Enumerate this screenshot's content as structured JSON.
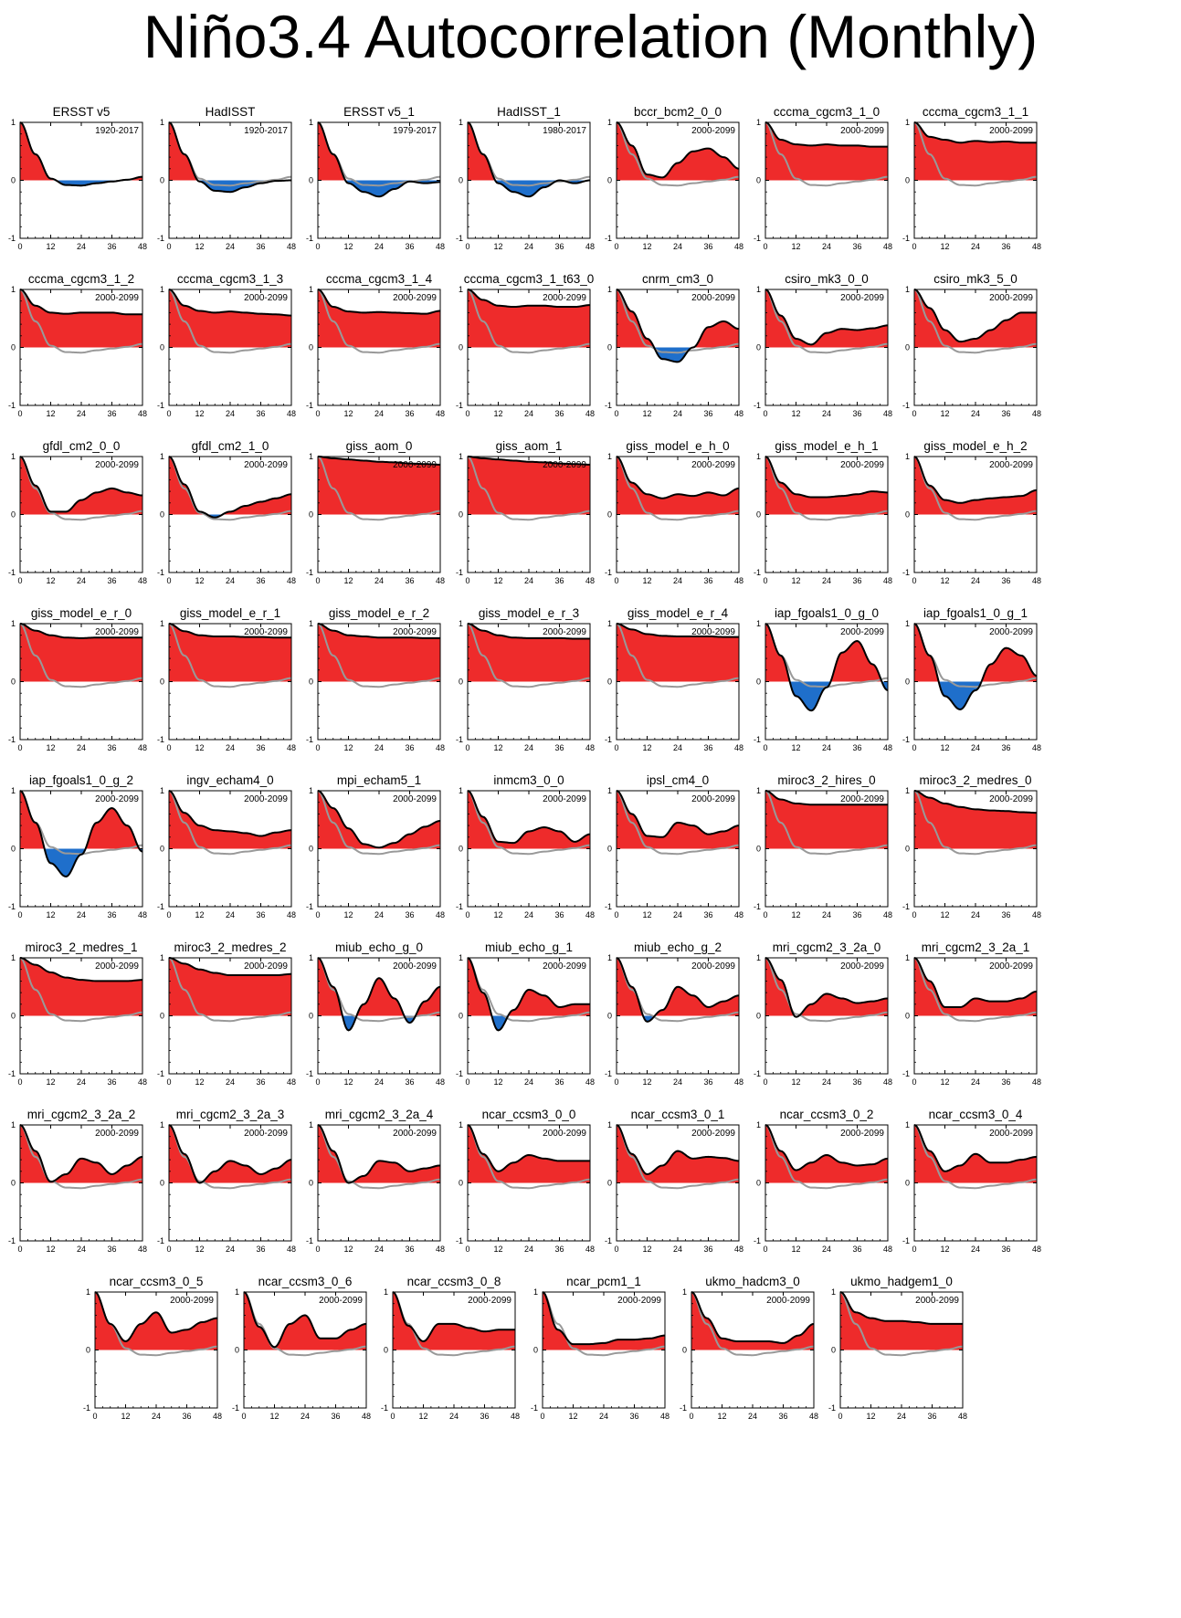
{
  "title": "Niño3.4 Autocorrelation (Monthly)",
  "colors": {
    "positive": "#ee2b2b",
    "negative": "#1f6fcb",
    "reference": "#999999",
    "line": "#000000"
  },
  "chart_data": {
    "type": "area",
    "x_ticks": [
      0,
      12,
      24,
      36,
      48
    ],
    "y_ticks": [
      -1,
      0,
      1
    ],
    "xlim": [
      0,
      48
    ],
    "ylim": [
      -1,
      1
    ],
    "x_knots": [
      0,
      6,
      12,
      18,
      24,
      30,
      36,
      42,
      48
    ],
    "reference": {
      "name": "ERSST v5",
      "values": [
        1,
        0.45,
        0.03,
        -0.08,
        -0.09,
        -0.05,
        -0.02,
        0.01,
        0.06
      ]
    },
    "panels": [
      {
        "name": "ERSST v5",
        "period": "1920-2017",
        "values": [
          1,
          0.45,
          0.03,
          -0.08,
          -0.09,
          -0.05,
          -0.02,
          0.01,
          0.06
        ]
      },
      {
        "name": "HadISST",
        "period": "1920-2017",
        "values": [
          1,
          0.45,
          -0.02,
          -0.18,
          -0.2,
          -0.12,
          -0.05,
          -0.01,
          0.0
        ]
      },
      {
        "name": "ERSST v5_1",
        "period": "1979-2017",
        "values": [
          1,
          0.45,
          -0.05,
          -0.2,
          -0.28,
          -0.15,
          -0.02,
          -0.05,
          -0.03
        ]
      },
      {
        "name": "HadISST_1",
        "period": "1980-2017",
        "values": [
          1,
          0.45,
          -0.05,
          -0.2,
          -0.28,
          -0.12,
          0.0,
          -0.05,
          0.0
        ]
      },
      {
        "name": "bccr_bcm2_0_0",
        "period": "2000-2099",
        "values": [
          1,
          0.6,
          0.1,
          0.05,
          0.3,
          0.5,
          0.55,
          0.4,
          0.2
        ]
      },
      {
        "name": "cccma_cgcm3_1_0",
        "period": "2000-2099",
        "values": [
          1,
          0.7,
          0.62,
          0.6,
          0.62,
          0.6,
          0.6,
          0.58,
          0.58
        ]
      },
      {
        "name": "cccma_cgcm3_1_1",
        "period": "2000-2099",
        "values": [
          1,
          0.75,
          0.7,
          0.65,
          0.68,
          0.66,
          0.67,
          0.65,
          0.65
        ]
      },
      {
        "name": "cccma_cgcm3_1_2",
        "period": "2000-2099",
        "values": [
          1,
          0.72,
          0.6,
          0.58,
          0.6,
          0.6,
          0.6,
          0.57,
          0.57
        ]
      },
      {
        "name": "cccma_cgcm3_1_3",
        "period": "2000-2099",
        "values": [
          1,
          0.72,
          0.63,
          0.6,
          0.62,
          0.6,
          0.58,
          0.57,
          0.55
        ]
      },
      {
        "name": "cccma_cgcm3_1_4",
        "period": "2000-2099",
        "values": [
          1,
          0.7,
          0.62,
          0.6,
          0.61,
          0.6,
          0.59,
          0.58,
          0.63
        ]
      },
      {
        "name": "cccma_cgcm3_1_t63_0",
        "period": "2000-2099",
        "values": [
          1,
          0.82,
          0.72,
          0.7,
          0.72,
          0.72,
          0.7,
          0.7,
          0.73
        ]
      },
      {
        "name": "cnrm_cm3_0",
        "period": "2000-2099",
        "values": [
          1,
          0.62,
          0.15,
          -0.2,
          -0.25,
          0.0,
          0.35,
          0.45,
          0.32
        ]
      },
      {
        "name": "csiro_mk3_0_0",
        "period": "2000-2099",
        "values": [
          1,
          0.55,
          0.15,
          0.05,
          0.25,
          0.32,
          0.3,
          0.33,
          0.38
        ]
      },
      {
        "name": "csiro_mk3_5_0",
        "period": "2000-2099",
        "values": [
          1,
          0.68,
          0.3,
          0.1,
          0.15,
          0.3,
          0.47,
          0.6,
          0.6
        ]
      },
      {
        "name": "gfdl_cm2_0_0",
        "period": "2000-2099",
        "values": [
          1,
          0.5,
          0.05,
          0.05,
          0.25,
          0.38,
          0.45,
          0.38,
          0.33
        ]
      },
      {
        "name": "gfdl_cm2_1_0",
        "period": "2000-2099",
        "values": [
          1,
          0.52,
          0.05,
          -0.05,
          0.05,
          0.15,
          0.22,
          0.28,
          0.35
        ]
      },
      {
        "name": "giss_aom_0",
        "period": "2000-2099",
        "values": [
          1,
          0.97,
          0.95,
          0.93,
          0.91,
          0.9,
          0.88,
          0.87,
          0.86
        ]
      },
      {
        "name": "giss_aom_1",
        "period": "2000-2099",
        "values": [
          1,
          0.97,
          0.95,
          0.93,
          0.91,
          0.9,
          0.88,
          0.87,
          0.86
        ]
      },
      {
        "name": "giss_model_e_h_0",
        "period": "2000-2099",
        "values": [
          1,
          0.55,
          0.35,
          0.28,
          0.35,
          0.32,
          0.38,
          0.33,
          0.45
        ]
      },
      {
        "name": "giss_model_e_h_1",
        "period": "2000-2099",
        "values": [
          1,
          0.55,
          0.35,
          0.3,
          0.3,
          0.32,
          0.35,
          0.4,
          0.38
        ]
      },
      {
        "name": "giss_model_e_h_2",
        "period": "2000-2099",
        "values": [
          1,
          0.5,
          0.25,
          0.2,
          0.25,
          0.28,
          0.3,
          0.32,
          0.42
        ]
      },
      {
        "name": "giss_model_e_r_0",
        "period": "2000-2099",
        "values": [
          1,
          0.88,
          0.8,
          0.76,
          0.75,
          0.76,
          0.76,
          0.76,
          0.76
        ]
      },
      {
        "name": "giss_model_e_r_1",
        "period": "2000-2099",
        "values": [
          1,
          0.87,
          0.8,
          0.78,
          0.78,
          0.77,
          0.77,
          0.76,
          0.76
        ]
      },
      {
        "name": "giss_model_e_r_2",
        "period": "2000-2099",
        "values": [
          1,
          0.88,
          0.8,
          0.78,
          0.76,
          0.76,
          0.76,
          0.75,
          0.75
        ]
      },
      {
        "name": "giss_model_e_r_3",
        "period": "2000-2099",
        "values": [
          1,
          0.88,
          0.8,
          0.76,
          0.75,
          0.75,
          0.75,
          0.74,
          0.74
        ]
      },
      {
        "name": "giss_model_e_r_4",
        "period": "2000-2099",
        "values": [
          1,
          0.9,
          0.82,
          0.79,
          0.78,
          0.78,
          0.78,
          0.77,
          0.77
        ]
      },
      {
        "name": "iap_fgoals1_0_g_0",
        "period": "2000-2099",
        "values": [
          1,
          0.45,
          -0.25,
          -0.5,
          -0.1,
          0.5,
          0.7,
          0.3,
          -0.15
        ]
      },
      {
        "name": "iap_fgoals1_0_g_1",
        "period": "2000-2099",
        "values": [
          1,
          0.45,
          -0.25,
          -0.48,
          -0.15,
          0.3,
          0.58,
          0.45,
          0.1
        ]
      },
      {
        "name": "iap_fgoals1_0_g_2",
        "period": "2000-2099",
        "values": [
          1,
          0.45,
          -0.25,
          -0.48,
          -0.1,
          0.45,
          0.7,
          0.4,
          -0.05
        ]
      },
      {
        "name": "ingv_echam4_0",
        "period": "2000-2099",
        "values": [
          1,
          0.62,
          0.4,
          0.32,
          0.3,
          0.27,
          0.22,
          0.28,
          0.32
        ]
      },
      {
        "name": "mpi_echam5_1",
        "period": "2000-2099",
        "values": [
          1,
          0.7,
          0.35,
          0.08,
          0.02,
          0.1,
          0.25,
          0.38,
          0.48
        ]
      },
      {
        "name": "inmcm3_0_0",
        "period": "2000-2099",
        "values": [
          1,
          0.55,
          0.12,
          0.1,
          0.3,
          0.37,
          0.3,
          0.12,
          0.25
        ]
      },
      {
        "name": "ipsl_cm4_0",
        "period": "2000-2099",
        "values": [
          1,
          0.6,
          0.22,
          0.2,
          0.45,
          0.4,
          0.25,
          0.3,
          0.4
        ]
      },
      {
        "name": "miroc3_2_hires_0",
        "period": "2000-2099",
        "values": [
          1,
          0.85,
          0.78,
          0.76,
          0.76,
          0.76,
          0.76,
          0.76,
          0.76
        ]
      },
      {
        "name": "miroc3_2_medres_0",
        "period": "2000-2099",
        "values": [
          1,
          0.88,
          0.78,
          0.72,
          0.68,
          0.66,
          0.65,
          0.63,
          0.62
        ]
      },
      {
        "name": "miroc3_2_medres_1",
        "period": "2000-2099",
        "values": [
          1,
          0.88,
          0.75,
          0.66,
          0.62,
          0.6,
          0.6,
          0.6,
          0.62
        ]
      },
      {
        "name": "miroc3_2_medres_2",
        "period": "2000-2099",
        "values": [
          1,
          0.9,
          0.8,
          0.74,
          0.7,
          0.7,
          0.7,
          0.7,
          0.72
        ]
      },
      {
        "name": "miub_echo_g_0",
        "period": "2000-2099",
        "values": [
          1,
          0.5,
          -0.25,
          0.2,
          0.65,
          0.3,
          -0.12,
          0.25,
          0.5
        ]
      },
      {
        "name": "miub_echo_g_1",
        "period": "2000-2099",
        "values": [
          1,
          0.4,
          -0.25,
          0.1,
          0.45,
          0.35,
          0.15,
          0.2,
          0.2
        ]
      },
      {
        "name": "miub_echo_g_2",
        "period": "2000-2099",
        "values": [
          1,
          0.5,
          -0.1,
          0.1,
          0.5,
          0.35,
          0.15,
          0.25,
          0.35
        ]
      },
      {
        "name": "mri_cgcm2_3_2a_0",
        "period": "2000-2099",
        "values": [
          1,
          0.62,
          -0.02,
          0.2,
          0.38,
          0.3,
          0.22,
          0.25,
          0.3
        ]
      },
      {
        "name": "mri_cgcm2_3_2a_1",
        "period": "2000-2099",
        "values": [
          1,
          0.6,
          0.15,
          0.15,
          0.3,
          0.25,
          0.25,
          0.3,
          0.42
        ]
      },
      {
        "name": "mri_cgcm2_3_2a_2",
        "period": "2000-2099",
        "values": [
          1,
          0.55,
          0.02,
          0.15,
          0.42,
          0.35,
          0.15,
          0.3,
          0.45
        ]
      },
      {
        "name": "mri_cgcm2_3_2a_3",
        "period": "2000-2099",
        "values": [
          1,
          0.5,
          0.0,
          0.2,
          0.38,
          0.3,
          0.15,
          0.25,
          0.4
        ]
      },
      {
        "name": "mri_cgcm2_3_2a_4",
        "period": "2000-2099",
        "values": [
          1,
          0.55,
          0.0,
          0.12,
          0.38,
          0.35,
          0.2,
          0.25,
          0.3
        ]
      },
      {
        "name": "ncar_ccsm3_0_0",
        "period": "2000-2099",
        "values": [
          1,
          0.5,
          0.2,
          0.35,
          0.48,
          0.42,
          0.38,
          0.38,
          0.38
        ]
      },
      {
        "name": "ncar_ccsm3_0_1",
        "period": "2000-2099",
        "values": [
          1,
          0.5,
          0.15,
          0.3,
          0.55,
          0.42,
          0.45,
          0.43,
          0.38
        ]
      },
      {
        "name": "ncar_ccsm3_0_2",
        "period": "2000-2099",
        "values": [
          1,
          0.55,
          0.22,
          0.35,
          0.48,
          0.35,
          0.3,
          0.32,
          0.42
        ]
      },
      {
        "name": "ncar_ccsm3_0_4",
        "period": "2000-2099",
        "values": [
          1,
          0.55,
          0.2,
          0.3,
          0.5,
          0.35,
          0.35,
          0.4,
          0.45
        ]
      },
      {
        "name": "ncar_ccsm3_0_5",
        "period": "2000-2099",
        "values": [
          1,
          0.45,
          0.15,
          0.45,
          0.65,
          0.3,
          0.35,
          0.48,
          0.55
        ]
      },
      {
        "name": "ncar_ccsm3_0_6",
        "period": "2000-2099",
        "values": [
          1,
          0.4,
          0.05,
          0.45,
          0.6,
          0.2,
          0.2,
          0.35,
          0.45
        ]
      },
      {
        "name": "ncar_ccsm3_0_8",
        "period": "2000-2099",
        "values": [
          1,
          0.42,
          0.15,
          0.45,
          0.45,
          0.38,
          0.32,
          0.35,
          0.35
        ]
      },
      {
        "name": "ncar_pcm1_1",
        "period": "2000-2099",
        "values": [
          1,
          0.35,
          0.1,
          0.1,
          0.12,
          0.18,
          0.18,
          0.2,
          0.25
        ]
      },
      {
        "name": "ukmo_hadcm3_0",
        "period": "2000-2099",
        "values": [
          1,
          0.55,
          0.2,
          0.15,
          0.15,
          0.15,
          0.12,
          0.25,
          0.45
        ]
      },
      {
        "name": "ukmo_hadgem1_0",
        "period": "2000-2099",
        "values": [
          1,
          0.65,
          0.55,
          0.5,
          0.5,
          0.48,
          0.45,
          0.45,
          0.45
        ]
      }
    ]
  }
}
